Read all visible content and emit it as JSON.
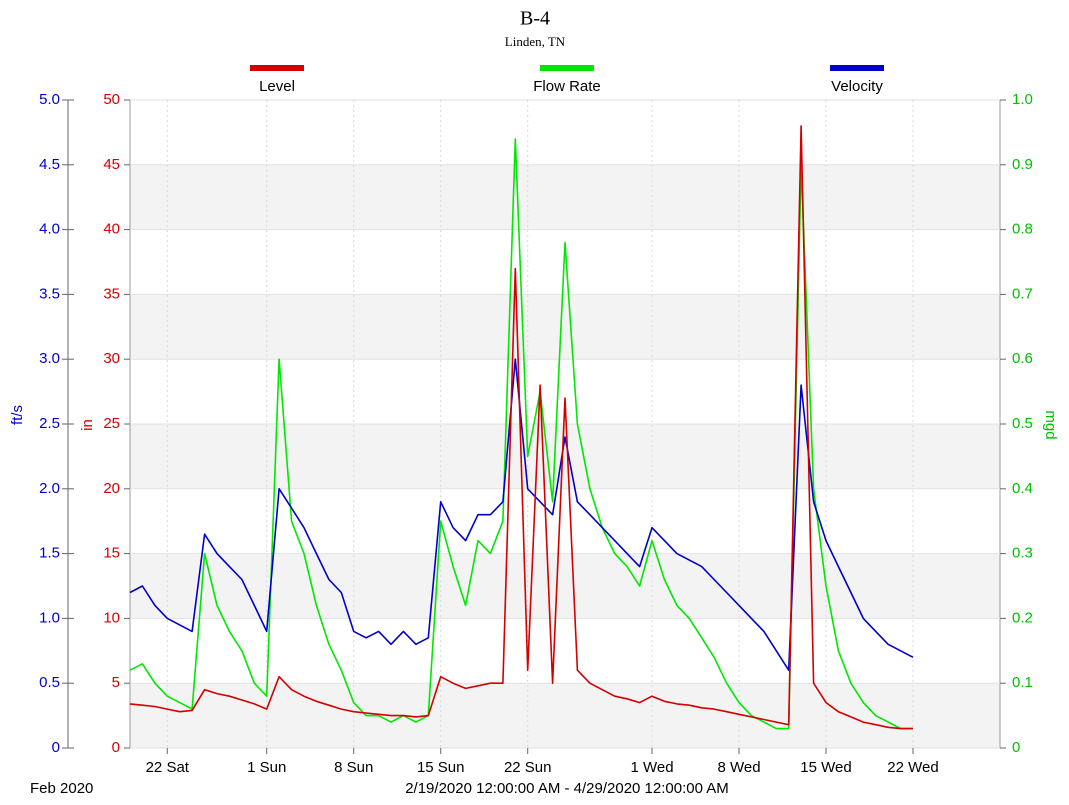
{
  "chart_data": {
    "type": "line",
    "title": "B-4",
    "subtitle": "Linden, TN",
    "period_label": "Feb 2020",
    "range_label": "2/19/2020 12:00:00 AM - 4/29/2020 12:00:00 AM",
    "ylabel": "ft/s",
    "y3label": "in",
    "y2label": "mgd",
    "grid": true,
    "legend": "top",
    "xlim": [
      "2020-02-19",
      "2020-04-29"
    ],
    "xticks": [
      {
        "value": "2020-02-22",
        "label": "22 Sat"
      },
      {
        "value": "2020-03-01",
        "label": "1 Sun"
      },
      {
        "value": "2020-03-08",
        "label": "8 Sun"
      },
      {
        "value": "2020-03-15",
        "label": "15 Sun"
      },
      {
        "value": "2020-03-22",
        "label": "22 Sun"
      },
      {
        "value": "2020-04-01",
        "label": "1 Wed"
      },
      {
        "value": "2020-04-08",
        "label": "8 Wed"
      },
      {
        "value": "2020-04-15",
        "label": "15 Wed"
      },
      {
        "value": "2020-04-22",
        "label": "22 Wed"
      }
    ],
    "ylim": [
      0,
      5
    ],
    "yticks": [
      0,
      0.5,
      {
        "value": 1,
        "label": "1.0"
      },
      1.5,
      {
        "value": 2,
        "label": "2.0"
      },
      2.5,
      {
        "value": 3,
        "label": "3.0"
      },
      3.5,
      {
        "value": 4,
        "label": "4.0"
      },
      4.5,
      {
        "value": 5,
        "label": "5.0"
      }
    ],
    "y3lim": [
      0,
      50
    ],
    "y3ticks": [
      0,
      5,
      10,
      15,
      20,
      25,
      30,
      35,
      40,
      45,
      50
    ],
    "y2lim": [
      0,
      1
    ],
    "y2ticks": [
      0,
      0.1,
      0.2,
      0.3,
      0.4,
      0.5,
      0.6,
      0.7,
      0.8,
      0.9,
      {
        "value": 1,
        "label": "1.0"
      }
    ],
    "x": [
      "2020-02-19",
      "2020-02-20",
      "2020-02-21",
      "2020-02-22",
      "2020-02-23",
      "2020-02-24",
      "2020-02-25",
      "2020-02-26",
      "2020-02-27",
      "2020-02-28",
      "2020-02-29",
      "2020-03-01",
      "2020-03-02",
      "2020-03-03",
      "2020-03-04",
      "2020-03-05",
      "2020-03-06",
      "2020-03-07",
      "2020-03-08",
      "2020-03-09",
      "2020-03-10",
      "2020-03-11",
      "2020-03-12",
      "2020-03-13",
      "2020-03-14",
      "2020-03-15",
      "2020-03-16",
      "2020-03-17",
      "2020-03-18",
      "2020-03-19",
      "2020-03-20",
      "2020-03-21",
      "2020-03-22",
      "2020-03-23",
      "2020-03-24",
      "2020-03-25",
      "2020-03-26",
      "2020-03-27",
      "2020-03-28",
      "2020-03-29",
      "2020-03-30",
      "2020-03-31",
      "2020-04-01",
      "2020-04-02",
      "2020-04-03",
      "2020-04-04",
      "2020-04-05",
      "2020-04-06",
      "2020-04-07",
      "2020-04-08",
      "2020-04-09",
      "2020-04-10",
      "2020-04-11",
      "2020-04-12",
      "2020-04-13",
      "2020-04-14",
      "2020-04-15",
      "2020-04-16",
      "2020-04-17",
      "2020-04-18",
      "2020-04-19",
      "2020-04-20",
      "2020-04-21",
      "2020-04-22"
    ],
    "series": [
      {
        "name": "Level",
        "color": "#d40000",
        "axis": "y3",
        "values": [
          3.4,
          3.3,
          3.2,
          3.0,
          2.8,
          2.9,
          4.5,
          4.2,
          4.0,
          3.7,
          3.4,
          3.0,
          5.5,
          4.5,
          4.0,
          3.6,
          3.3,
          3.0,
          2.8,
          2.7,
          2.6,
          2.5,
          2.5,
          2.4,
          2.5,
          5.5,
          5.0,
          4.6,
          4.8,
          5.0,
          5.0,
          37,
          6,
          28,
          5,
          27,
          6,
          5.0,
          4.5,
          4.0,
          3.8,
          3.5,
          4.0,
          3.6,
          3.4,
          3.3,
          3.1,
          3.0,
          2.8,
          2.6,
          2.4,
          2.2,
          2.0,
          1.8,
          48,
          5,
          3.5,
          2.8,
          2.4,
          2.0,
          1.8,
          1.6,
          1.5,
          1.5
        ]
      },
      {
        "name": "Flow Rate",
        "color": "#00e800",
        "axis": "y2",
        "values": [
          0.12,
          0.13,
          0.1,
          0.08,
          0.07,
          0.06,
          0.3,
          0.22,
          0.18,
          0.15,
          0.1,
          0.08,
          0.6,
          0.35,
          0.3,
          0.22,
          0.16,
          0.12,
          0.07,
          0.05,
          0.05,
          0.04,
          0.05,
          0.04,
          0.05,
          0.35,
          0.28,
          0.22,
          0.32,
          0.3,
          0.35,
          0.94,
          0.45,
          0.55,
          0.38,
          0.78,
          0.5,
          0.4,
          0.34,
          0.3,
          0.28,
          0.25,
          0.32,
          0.26,
          0.22,
          0.2,
          0.17,
          0.14,
          0.1,
          0.07,
          0.05,
          0.04,
          0.03,
          0.03,
          0.9,
          0.4,
          0.25,
          0.15,
          0.1,
          0.07,
          0.05,
          0.04,
          0.03,
          0.03
        ]
      },
      {
        "name": "Velocity",
        "color": "#0000cc",
        "axis": "y",
        "values": [
          1.2,
          1.25,
          1.1,
          1.0,
          0.95,
          0.9,
          1.65,
          1.5,
          1.4,
          1.3,
          1.1,
          0.9,
          2.0,
          1.85,
          1.7,
          1.5,
          1.3,
          1.2,
          0.9,
          0.85,
          0.9,
          0.8,
          0.9,
          0.8,
          0.85,
          1.9,
          1.7,
          1.6,
          1.8,
          1.8,
          1.9,
          3.0,
          2.0,
          1.9,
          1.8,
          2.4,
          1.9,
          1.8,
          1.7,
          1.6,
          1.5,
          1.4,
          1.7,
          1.6,
          1.5,
          1.45,
          1.4,
          1.3,
          1.2,
          1.1,
          1.0,
          0.9,
          0.75,
          0.6,
          2.8,
          1.9,
          1.6,
          1.4,
          1.2,
          1.0,
          0.9,
          0.8,
          0.75,
          0.7
        ]
      }
    ]
  }
}
